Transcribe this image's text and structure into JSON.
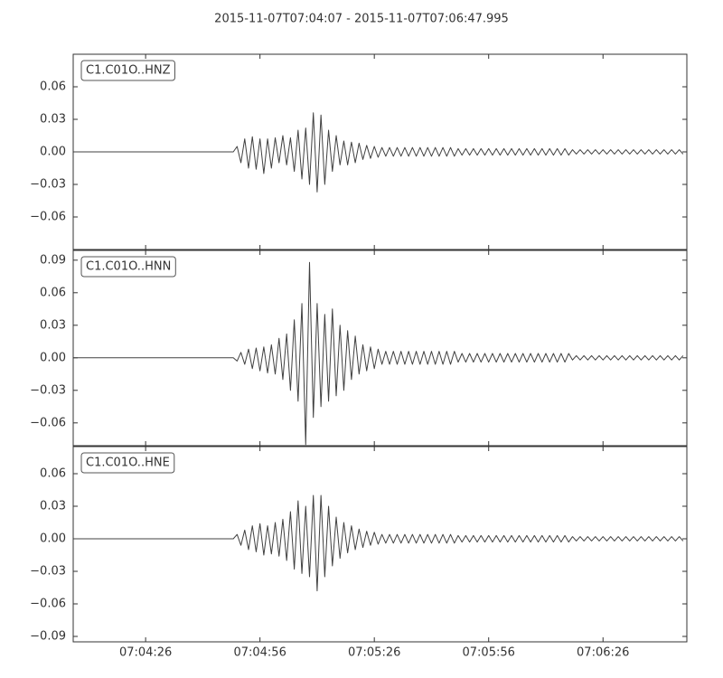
{
  "chart_data": {
    "type": "line",
    "title": "2015-11-07T07:04:07  -  2015-11-07T07:06:47.995",
    "xlim": [
      "07:04:07",
      "07:06:47.995"
    ],
    "xticks": [
      "07:04:26",
      "07:04:56",
      "07:05:26",
      "07:05:56",
      "07:06:26"
    ],
    "x": [
      "07:04:07",
      "07:04:08",
      "07:04:09",
      "07:04:10",
      "07:04:11",
      "07:04:12",
      "07:04:13",
      "07:04:14",
      "07:04:15",
      "07:04:16",
      "07:04:17",
      "07:04:18",
      "07:04:19",
      "07:04:20",
      "07:04:21",
      "07:04:22",
      "07:04:23",
      "07:04:24",
      "07:04:25",
      "07:04:26",
      "07:04:27",
      "07:04:28",
      "07:04:29",
      "07:04:30",
      "07:04:31",
      "07:04:32",
      "07:04:33",
      "07:04:34",
      "07:04:35",
      "07:04:36",
      "07:04:37",
      "07:04:38",
      "07:04:39",
      "07:04:40",
      "07:04:41",
      "07:04:42",
      "07:04:43",
      "07:04:44",
      "07:04:45",
      "07:04:46",
      "07:04:47",
      "07:04:48",
      "07:04:49",
      "07:04:50",
      "07:04:51",
      "07:04:52",
      "07:04:53",
      "07:04:54",
      "07:04:55",
      "07:04:56",
      "07:04:57",
      "07:04:58",
      "07:04:59",
      "07:05:00",
      "07:05:01",
      "07:05:02",
      "07:05:03",
      "07:05:04",
      "07:05:05",
      "07:05:06",
      "07:05:07",
      "07:05:08",
      "07:05:09",
      "07:05:10",
      "07:05:11",
      "07:05:12",
      "07:05:13",
      "07:05:14",
      "07:05:15",
      "07:05:16",
      "07:05:17",
      "07:05:18",
      "07:05:19",
      "07:05:20",
      "07:05:21",
      "07:05:22",
      "07:05:23",
      "07:05:24",
      "07:05:25",
      "07:05:26",
      "07:05:27",
      "07:05:28",
      "07:05:29",
      "07:05:30",
      "07:05:31",
      "07:05:32",
      "07:05:33",
      "07:05:34",
      "07:05:35",
      "07:05:36",
      "07:05:37",
      "07:05:38",
      "07:05:39",
      "07:05:40",
      "07:05:41",
      "07:05:42",
      "07:05:43",
      "07:05:44",
      "07:05:45",
      "07:05:46",
      "07:05:47",
      "07:05:48",
      "07:05:49",
      "07:05:50",
      "07:05:51",
      "07:05:52",
      "07:05:53",
      "07:05:54",
      "07:05:55",
      "07:05:56",
      "07:05:57",
      "07:05:58",
      "07:05:59",
      "07:06:00",
      "07:06:01",
      "07:06:02",
      "07:06:03",
      "07:06:04",
      "07:06:05",
      "07:06:06",
      "07:06:07",
      "07:06:08",
      "07:06:09",
      "07:06:10",
      "07:06:11",
      "07:06:12",
      "07:06:13",
      "07:06:14",
      "07:06:15",
      "07:06:16",
      "07:06:17",
      "07:06:18",
      "07:06:19",
      "07:06:20",
      "07:06:21",
      "07:06:22",
      "07:06:23",
      "07:06:24",
      "07:06:25",
      "07:06:26",
      "07:06:27",
      "07:06:28",
      "07:06:29",
      "07:06:30",
      "07:06:31",
      "07:06:32",
      "07:06:33",
      "07:06:34",
      "07:06:35",
      "07:06:36",
      "07:06:37",
      "07:06:38",
      "07:06:39",
      "07:06:40",
      "07:06:41",
      "07:06:42",
      "07:06:43",
      "07:06:44",
      "07:06:45",
      "07:06:46",
      "07:06:47"
    ],
    "series": [
      {
        "name": "C1.C01O..HNZ",
        "color": "#404040",
        "ylim": [
          -0.09,
          0.09
        ],
        "yticks": [
          {
            "value": -0.06,
            "label": "−0.06"
          },
          {
            "value": -0.03,
            "label": "−0.03"
          },
          {
            "value": 0,
            "label": "0.00"
          },
          0.03,
          0.06
        ],
        "values": [
          0,
          0,
          0,
          0,
          0,
          0,
          0,
          0,
          0,
          0,
          0,
          0,
          0,
          0,
          0,
          0,
          0,
          0,
          0,
          0,
          0,
          0,
          0,
          0,
          0,
          0,
          0,
          0,
          0,
          0,
          0,
          0,
          0,
          0,
          0,
          0,
          0,
          0,
          0,
          0,
          0,
          0,
          0,
          0.005,
          -0.01,
          0.012,
          -0.015,
          0.014,
          -0.016,
          0.012,
          -0.02,
          0.012,
          -0.015,
          0.013,
          -0.01,
          0.015,
          -0.012,
          0.013,
          -0.018,
          0.02,
          -0.025,
          0.022,
          -0.03,
          0.036,
          -0.037,
          0.034,
          -0.03,
          0.02,
          -0.018,
          0.015,
          -0.012,
          0.01,
          -0.012,
          0.009,
          -0.01,
          0.008,
          -0.007,
          0.006,
          -0.006,
          0.005,
          -0.005,
          0.004,
          -0.004,
          0.004,
          -0.004,
          0.004,
          -0.004,
          0.004,
          -0.004,
          0.004,
          -0.004,
          0.004,
          -0.004,
          0.004,
          -0.004,
          0.004,
          -0.004,
          0.004,
          -0.004,
          0.004,
          -0.004,
          0.003,
          -0.003,
          0.003,
          -0.003,
          0.003,
          -0.003,
          0.003,
          -0.003,
          0.003,
          -0.003,
          0.003,
          -0.003,
          0.003,
          -0.003,
          0.003,
          -0.003,
          0.003,
          -0.003,
          0.003,
          -0.003,
          0.003,
          -0.003,
          0.003,
          -0.003,
          0.003,
          -0.003,
          0.003,
          -0.003,
          0.003,
          -0.003,
          0.002,
          -0.002,
          0.002,
          -0.002,
          0.002,
          -0.002,
          0.002,
          -0.002,
          0.002,
          -0.002,
          0.002,
          -0.002,
          0.002,
          -0.002,
          0.002,
          -0.002,
          0.002,
          -0.002,
          0.002,
          -0.002,
          0.002,
          -0.002,
          0.002,
          -0.002,
          0.002,
          -0.002,
          0.002,
          -0.002,
          0.002,
          -0.002
        ]
      },
      {
        "name": "C1.C01O..HNN",
        "color": "#404040",
        "ylim": [
          -0.081,
          0.099
        ],
        "yticks": [
          {
            "value": -0.06,
            "label": "−0.06"
          },
          {
            "value": -0.03,
            "label": "−0.03"
          },
          {
            "value": 0,
            "label": "0.00"
          },
          0.03,
          0.06,
          0.09
        ],
        "values": [
          0,
          0,
          0,
          0,
          0,
          0,
          0,
          0,
          0,
          0,
          0,
          0,
          0,
          0,
          0,
          0,
          0,
          0,
          0,
          0,
          0,
          0,
          0,
          0,
          0,
          0,
          0,
          0,
          0,
          0,
          0,
          0,
          0,
          0,
          0,
          0,
          0,
          0,
          0,
          0,
          0,
          0,
          0,
          -0.003,
          0.005,
          -0.006,
          0.008,
          -0.01,
          0.009,
          -0.012,
          0.01,
          -0.014,
          0.012,
          -0.015,
          0.018,
          -0.02,
          0.022,
          -0.03,
          0.035,
          -0.04,
          0.05,
          -0.08,
          0.088,
          -0.055,
          0.05,
          -0.045,
          0.04,
          -0.04,
          0.045,
          -0.035,
          0.03,
          -0.03,
          0.025,
          -0.02,
          0.02,
          -0.015,
          0.012,
          -0.012,
          0.01,
          -0.01,
          0.008,
          -0.006,
          0.006,
          -0.006,
          0.006,
          -0.006,
          0.006,
          -0.006,
          0.006,
          -0.006,
          0.006,
          -0.006,
          0.006,
          -0.006,
          0.006,
          -0.006,
          0.006,
          -0.006,
          0.006,
          -0.006,
          0.006,
          -0.004,
          0.004,
          -0.004,
          0.004,
          -0.004,
          0.004,
          -0.004,
          0.004,
          -0.004,
          0.004,
          -0.004,
          0.004,
          -0.004,
          0.004,
          -0.004,
          0.004,
          -0.004,
          0.004,
          -0.004,
          0.004,
          -0.004,
          0.004,
          -0.004,
          0.004,
          -0.004,
          0.004,
          -0.004,
          0.004,
          -0.004,
          0.004,
          -0.002,
          0.002,
          -0.002,
          0.002,
          -0.002,
          0.002,
          -0.002,
          0.002,
          -0.002,
          0.002,
          -0.002,
          0.002,
          -0.002,
          0.002,
          -0.002,
          0.002,
          -0.002,
          0.002,
          -0.002,
          0.002,
          -0.002,
          0.002,
          -0.002,
          0.002,
          -0.002,
          0.002,
          -0.002,
          0.002,
          -0.002,
          0.002
        ]
      },
      {
        "name": "C1.C01O..HNE",
        "color": "#404040",
        "ylim": [
          -0.095,
          0.085
        ],
        "yticks": [
          {
            "value": -0.09,
            "label": "−0.09"
          },
          {
            "value": -0.06,
            "label": "−0.06"
          },
          {
            "value": -0.03,
            "label": "−0.03"
          },
          {
            "value": 0,
            "label": "0.00"
          },
          0.03,
          0.06
        ],
        "values": [
          0,
          0,
          0,
          0,
          0,
          0,
          0,
          0,
          0,
          0,
          0,
          0,
          0,
          0,
          0,
          0,
          0,
          0,
          0,
          0,
          0,
          0,
          0,
          0,
          0,
          0,
          0,
          0,
          0,
          0,
          0,
          0,
          0,
          0,
          0,
          0,
          0,
          0,
          0,
          0,
          0,
          0,
          0,
          0.004,
          -0.006,
          0.008,
          -0.01,
          0.012,
          -0.012,
          0.014,
          -0.015,
          0.012,
          -0.014,
          0.015,
          -0.016,
          0.018,
          -0.02,
          0.025,
          -0.028,
          0.035,
          -0.032,
          0.03,
          -0.035,
          0.04,
          -0.048,
          0.04,
          -0.035,
          0.03,
          -0.025,
          0.02,
          -0.018,
          0.015,
          -0.013,
          0.012,
          -0.01,
          0.009,
          -0.008,
          0.007,
          -0.006,
          0.006,
          -0.005,
          0.004,
          -0.004,
          0.004,
          -0.004,
          0.004,
          -0.004,
          0.004,
          -0.004,
          0.004,
          -0.004,
          0.004,
          -0.004,
          0.004,
          -0.004,
          0.004,
          -0.004,
          0.004,
          -0.004,
          0.004,
          -0.004,
          0.003,
          -0.003,
          0.003,
          -0.003,
          0.003,
          -0.003,
          0.003,
          -0.003,
          0.003,
          -0.003,
          0.003,
          -0.003,
          0.003,
          -0.003,
          0.003,
          -0.003,
          0.003,
          -0.003,
          0.003,
          -0.003,
          0.003,
          -0.003,
          0.003,
          -0.003,
          0.003,
          -0.003,
          0.003,
          -0.003,
          0.003,
          -0.003,
          0.002,
          -0.002,
          0.002,
          -0.002,
          0.002,
          -0.002,
          0.002,
          -0.002,
          0.002,
          -0.002,
          0.002,
          -0.002,
          0.002,
          -0.002,
          0.002,
          -0.002,
          0.002,
          -0.002,
          0.002,
          -0.002,
          0.002,
          -0.002,
          0.002,
          -0.002,
          0.002,
          -0.002,
          0.002,
          -0.002,
          0.002,
          -0.002
        ]
      }
    ]
  }
}
